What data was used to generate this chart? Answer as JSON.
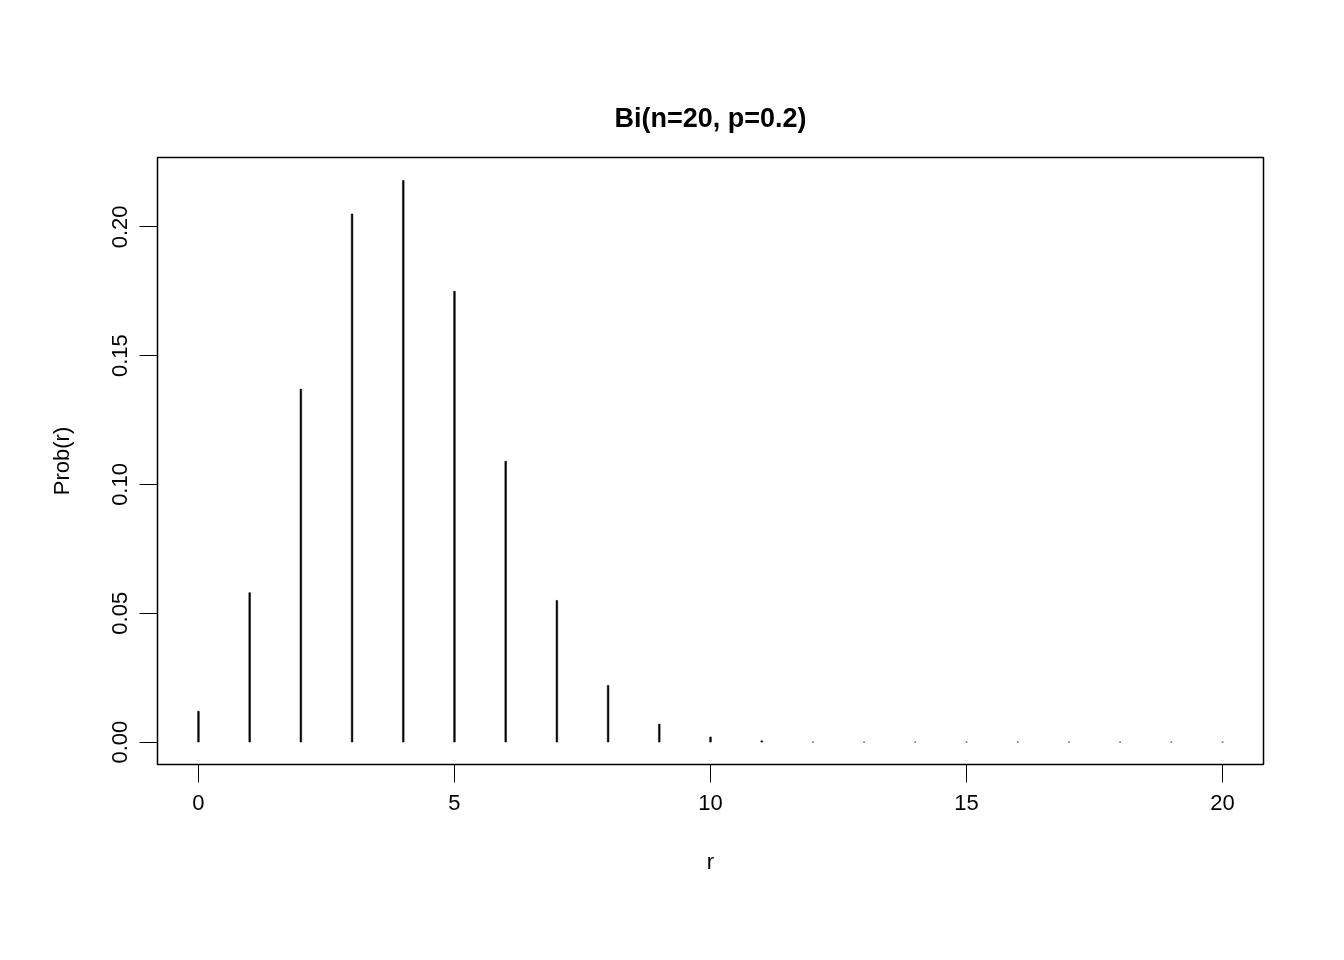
{
  "chart_data": {
    "type": "bar",
    "title": "Bi(n=20, p=0.2)",
    "xlabel": "r",
    "ylabel": "Prob(r)",
    "x": [
      0,
      1,
      2,
      3,
      4,
      5,
      6,
      7,
      8,
      9,
      10,
      11,
      12,
      13,
      14,
      15,
      16,
      17,
      18,
      19,
      20
    ],
    "values": [
      0.012,
      0.058,
      0.137,
      0.205,
      0.218,
      0.175,
      0.109,
      0.055,
      0.022,
      0.007,
      0.002,
      0.0005,
      0,
      0,
      0,
      0,
      0,
      0,
      0,
      0,
      0
    ],
    "color": "#000000",
    "xlim": [
      -0.8,
      20.8
    ],
    "ylim": [
      -0.0087,
      0.2269
    ],
    "xticks": [
      0,
      5,
      10,
      15,
      20
    ],
    "yticks": [
      {
        "value": 0,
        "label": "0.00"
      },
      {
        "value": 0.05,
        "label": "0.05"
      },
      {
        "value": 0.1,
        "label": "0.10"
      },
      {
        "value": 0.15,
        "label": "0.15"
      },
      {
        "value": 0.2,
        "label": "0.20"
      }
    ],
    "grid": false
  }
}
